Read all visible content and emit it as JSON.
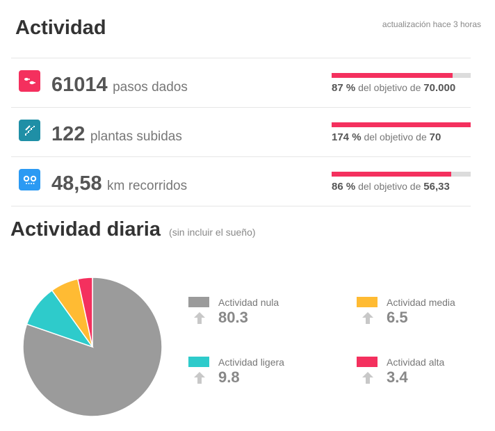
{
  "header": {
    "title": "Actividad",
    "updated": "actualización hace 3 horas"
  },
  "stats": [
    {
      "icon": "steps-icon",
      "color": "#f4305e",
      "value": "61014",
      "unit": "pasos dados",
      "percent": "87 %",
      "goal_text": "del objetivo de",
      "goal": "70.000",
      "progress": 0.87
    },
    {
      "icon": "stairs-icon",
      "color": "#1f8fa6",
      "value": "122",
      "unit": "plantas subidas",
      "percent": "174 %",
      "goal_text": "del objetivo de",
      "goal": "70",
      "progress": 1.0
    },
    {
      "icon": "distance-icon",
      "color": "#2b9af3",
      "value": "48,58",
      "unit": "km recorridos",
      "percent": "86 %",
      "goal_text": "del objetivo de",
      "goal": "56,33",
      "progress": 0.86
    }
  ],
  "daily": {
    "title": "Actividad diaria",
    "note": "(sin incluir el sueño)"
  },
  "chart_data": {
    "type": "pie",
    "slices": [
      {
        "label": "Actividad nula",
        "value": 80.3,
        "color": "#9b9b9b"
      },
      {
        "label": "Actividad ligera",
        "value": 9.8,
        "color": "#2ecbcb"
      },
      {
        "label": "Actividad media",
        "value": 6.5,
        "color": "#ffbb33"
      },
      {
        "label": "Actividad alta",
        "value": 3.4,
        "color": "#f4305e"
      }
    ]
  },
  "legend": [
    {
      "label": "Actividad nula",
      "value": "80.3",
      "color": "#9b9b9b",
      "icon": "arrow-up-icon"
    },
    {
      "label": "Actividad media",
      "value": "6.5",
      "color": "#ffbb33",
      "icon": "arrow-up-icon"
    },
    {
      "label": "Actividad ligera",
      "value": "9.8",
      "color": "#2ecbcb",
      "icon": "arrow-up-icon"
    },
    {
      "label": "Actividad alta",
      "value": "3.4",
      "color": "#f4305e",
      "icon": "arrow-up-icon"
    }
  ]
}
